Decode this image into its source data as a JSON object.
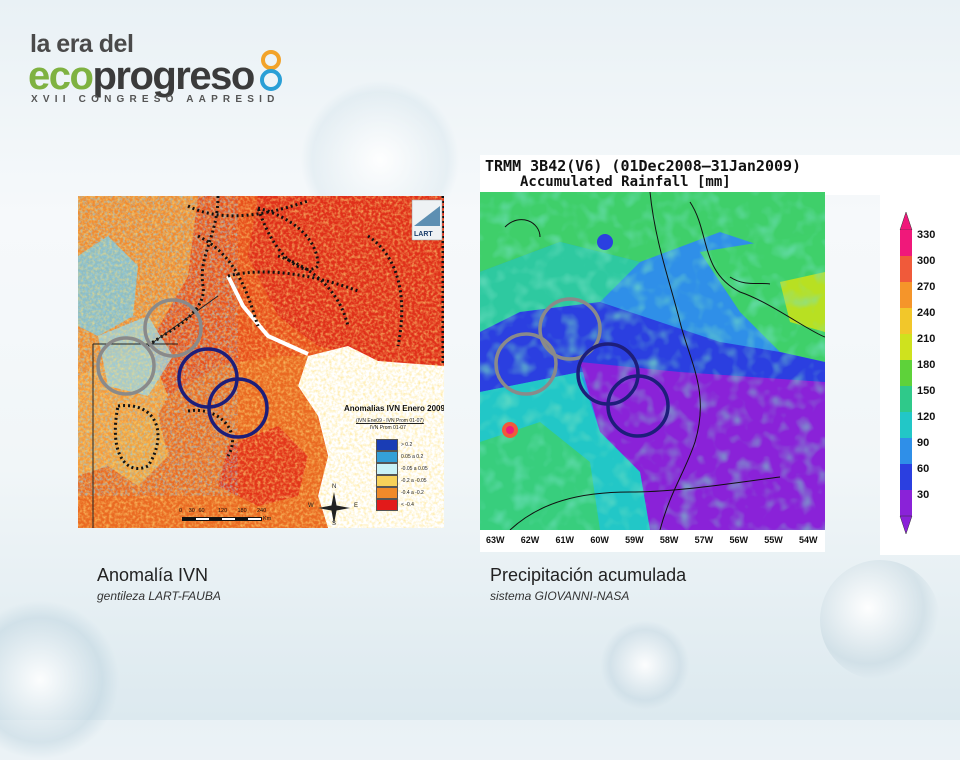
{
  "logo": {
    "line1": "la era del",
    "eco": "eco",
    "progreso": "progreso",
    "subtitle": "XVII CONGRESO AAPRESID"
  },
  "left_panel": {
    "corner_logo": "LART",
    "legend_title": "Anomalias IVN Enero 2009",
    "legend_formula": "(IVN Ene09 - IVN Prom 01-07)",
    "legend_formula2": "IVN Prom 01-07",
    "legend_classes": [
      {
        "label": "> 0.2",
        "color": "#1a3db5"
      },
      {
        "label": "0.05 a 0.2",
        "color": "#34a0d8"
      },
      {
        "label": "-0.05 a 0.05",
        "color": "#c9f2f7"
      },
      {
        "label": "-0.2 a -0.05",
        "color": "#f7d15a"
      },
      {
        "label": "-0.4 a -0.2",
        "color": "#f08a2a"
      },
      {
        "label": "< -0.4",
        "color": "#e21a1a"
      }
    ],
    "scale_ticks": [
      "0",
      "30",
      "60",
      "120",
      "180",
      "240"
    ],
    "scale_unit": "Km",
    "compass": {
      "n": "N",
      "s": "S",
      "e": "E",
      "w": "W"
    },
    "caption_title": "Anomalía IVN",
    "caption_source": "gentileza LART-FAUBA"
  },
  "right_panel": {
    "title_line1": "TRMM 3B42(V6) (01Dec2008–31Jan2009)",
    "title_line2": "Accumulated Rainfall [mm]",
    "longitudes": [
      "63W",
      "62W",
      "61W",
      "60W",
      "59W",
      "58W",
      "57W",
      "56W",
      "55W",
      "54W"
    ],
    "colorbar": [
      {
        "label": "330",
        "color": "#f0187a"
      },
      {
        "label": "300",
        "color": "#f05a3a"
      },
      {
        "label": "270",
        "color": "#f5952a"
      },
      {
        "label": "240",
        "color": "#f2c72a"
      },
      {
        "label": "210",
        "color": "#cfe21e"
      },
      {
        "label": "180",
        "color": "#5ed23a"
      },
      {
        "label": "150",
        "color": "#2fc98a"
      },
      {
        "label": "120",
        "color": "#22c7c7"
      },
      {
        "label": "90",
        "color": "#2f8fe8"
      },
      {
        "label": "60",
        "color": "#2b3fe0"
      },
      {
        "label": "30",
        "color": "#8a22d8"
      }
    ],
    "caption_title": "Precipitación acumulada",
    "caption_source": "sistema GIOVANNI-NASA"
  }
}
